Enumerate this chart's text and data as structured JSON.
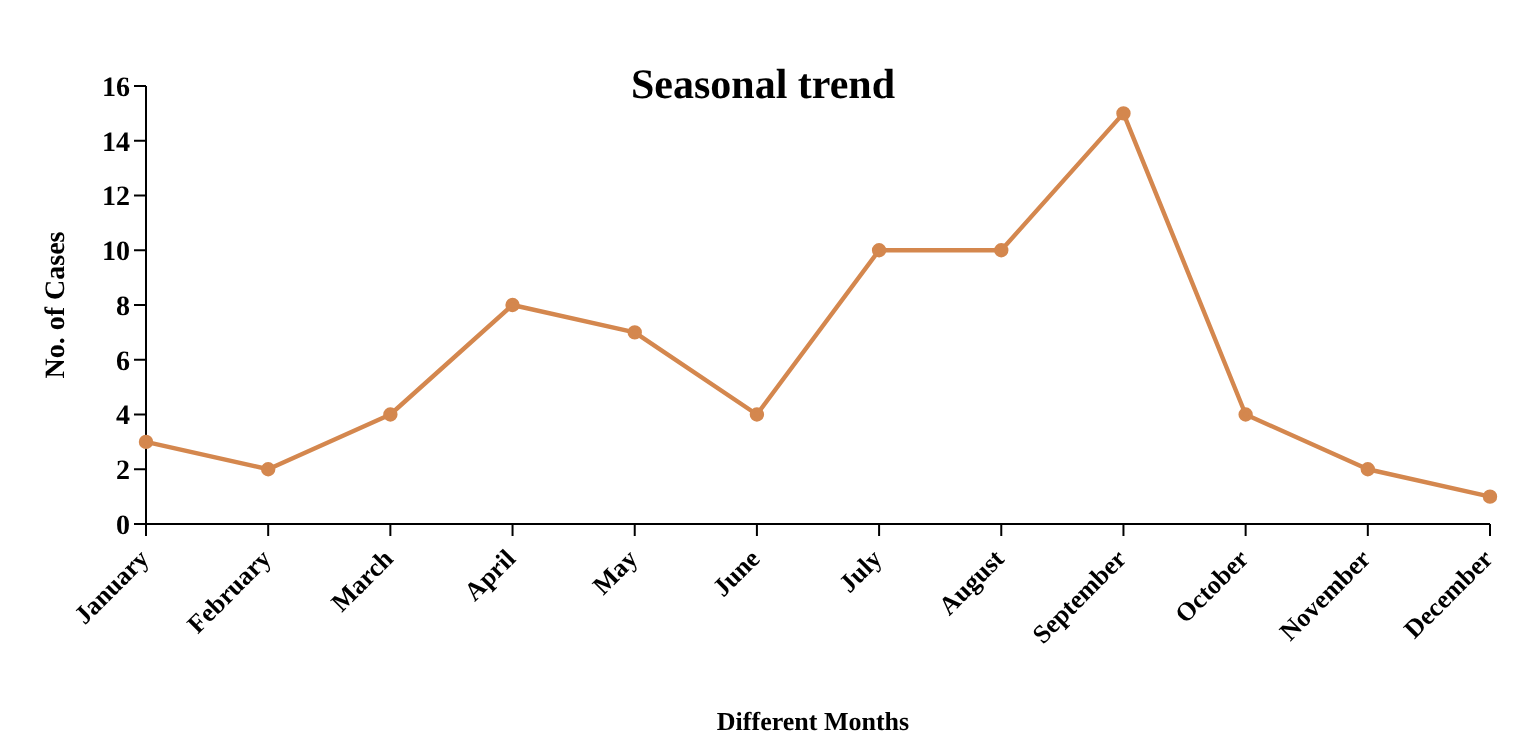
{
  "chart_data": {
    "type": "line",
    "title": "Seasonal trend",
    "xlabel": "Different Months",
    "ylabel": "No. of Cases",
    "categories": [
      "January",
      "February",
      "March",
      "April",
      "May",
      "June",
      "July",
      "August",
      "September",
      "October",
      "November",
      "December"
    ],
    "series": [
      {
        "color": "#d4874e",
        "values": [
          3,
          2,
          4,
          8,
          7,
          4,
          10,
          10,
          15,
          4,
          2,
          1
        ]
      }
    ],
    "ylim": [
      0,
      16
    ],
    "yticks": [
      0,
      2,
      4,
      6,
      8,
      10,
      12,
      14,
      16
    ],
    "grid": false,
    "legend": false,
    "marker": "circle",
    "line_style": "solid"
  }
}
